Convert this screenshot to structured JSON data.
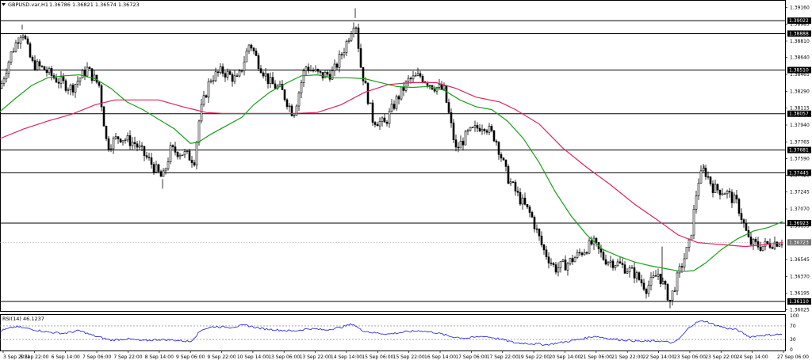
{
  "header": {
    "symbol": "GBPUSD.var,H1",
    "ohlc": "1.36786 1.36821 1.36574 1.36723",
    "menu_icon": "triangle-down-icon"
  },
  "rsi": {
    "label": "RSI(14) 46.1237",
    "levels": [
      100,
      70,
      30,
      0
    ],
    "value": 46.1237
  },
  "chart_data": {
    "type": "candlestick",
    "symbol": "GBPUSD.var",
    "timeframe": "H1",
    "current_price": 1.36723,
    "ylim": [
      1.3602,
      1.3922
    ],
    "price_ticks": [
      "1.39160",
      "1.38985",
      "1.38810",
      "1.38640",
      "1.38465",
      "1.38290",
      "1.38115",
      "1.37940",
      "1.37765",
      "1.37590",
      "1.37420",
      "1.37245",
      "1.37070",
      "1.36895",
      "1.36545",
      "1.36370",
      "1.36195",
      "1.36025"
    ],
    "horizontal_levels": [
      "1.39022",
      "1.38888",
      "1.38510",
      "1.38057",
      "1.37681",
      "1.37445",
      "1.36923",
      "1.36723",
      "1.36110"
    ],
    "time_labels": [
      "3 Sep 2021",
      "5 Sep 22:00",
      "6 Sep 14:00",
      "7 Sep 06:00",
      "7 Sep 22:00",
      "8 Sep 14:00",
      "9 Sep 06:00",
      "9 Sep 22:00",
      "10 Sep 14:00",
      "13 Sep 06:00",
      "13 Sep 22:00",
      "14 Sep 14:00",
      "15 Sep 06:00",
      "15 Sep 22:00",
      "16 Sep 14:00",
      "17 Sep 06:00",
      "17 Sep 22:00",
      "19 Sep 22:00",
      "20 Sep 14:00",
      "21 Sep 06:00",
      "21 Sep 22:00",
      "22 Sep 14:00",
      "23 Sep 06:00",
      "23 Sep 22:00",
      "24 Sep 14:00",
      "27 Sep 06:00"
    ],
    "price_path": [
      [
        0,
        1.3832
      ],
      [
        14,
        1.3868
      ],
      [
        28,
        1.3893
      ],
      [
        40,
        1.3858
      ],
      [
        55,
        1.3852
      ],
      [
        70,
        1.3842
      ],
      [
        90,
        1.3832
      ],
      [
        110,
        1.3852
      ],
      [
        125,
        1.3835
      ],
      [
        135,
        1.3772
      ],
      [
        150,
        1.3782
      ],
      [
        170,
        1.3775
      ],
      [
        190,
        1.3755
      ],
      [
        205,
        1.3738
      ],
      [
        215,
        1.3768
      ],
      [
        230,
        1.3765
      ],
      [
        245,
        1.3758
      ],
      [
        252,
        1.3805
      ],
      [
        265,
        1.3842
      ],
      [
        280,
        1.385
      ],
      [
        300,
        1.384
      ],
      [
        315,
        1.388
      ],
      [
        325,
        1.386
      ],
      [
        340,
        1.3838
      ],
      [
        355,
        1.383
      ],
      [
        370,
        1.3805
      ],
      [
        385,
        1.3855
      ],
      [
        405,
        1.3845
      ],
      [
        420,
        1.3848
      ],
      [
        435,
        1.3875
      ],
      [
        448,
        1.3905
      ],
      [
        455,
        1.3855
      ],
      [
        470,
        1.38
      ],
      [
        485,
        1.3795
      ],
      [
        500,
        1.382
      ],
      [
        515,
        1.384
      ],
      [
        530,
        1.3845
      ],
      [
        545,
        1.3835
      ],
      [
        560,
        1.383
      ],
      [
        575,
        1.3768
      ],
      [
        590,
        1.3785
      ],
      [
        610,
        1.3795
      ],
      [
        625,
        1.378
      ],
      [
        640,
        1.374
      ],
      [
        655,
        1.3718
      ],
      [
        670,
        1.37
      ],
      [
        685,
        1.3665
      ],
      [
        700,
        1.3645
      ],
      [
        715,
        1.365
      ],
      [
        730,
        1.366
      ],
      [
        748,
        1.3672
      ],
      [
        762,
        1.3655
      ],
      [
        780,
        1.365
      ],
      [
        800,
        1.364
      ],
      [
        815,
        1.3625
      ],
      [
        830,
        1.364
      ],
      [
        845,
        1.3612
      ],
      [
        858,
        1.3645
      ],
      [
        870,
        1.3672
      ],
      [
        880,
        1.3735
      ],
      [
        888,
        1.3748
      ],
      [
        900,
        1.3728
      ],
      [
        915,
        1.3725
      ],
      [
        930,
        1.3712
      ],
      [
        945,
        1.3672
      ],
      [
        960,
        1.3668
      ],
      [
        975,
        1.3672
      ],
      [
        987,
        1.3674
      ]
    ],
    "ma_green": [
      [
        0,
        1.3808
      ],
      [
        20,
        1.3822
      ],
      [
        40,
        1.3835
      ],
      [
        60,
        1.3843
      ],
      [
        80,
        1.3845
      ],
      [
        100,
        1.3846
      ],
      [
        120,
        1.3842
      ],
      [
        140,
        1.3832
      ],
      [
        160,
        1.3818
      ],
      [
        180,
        1.381
      ],
      [
        200,
        1.38
      ],
      [
        220,
        1.379
      ],
      [
        240,
        1.3775
      ],
      [
        250,
        1.3776
      ],
      [
        265,
        1.3784
      ],
      [
        285,
        1.3793
      ],
      [
        305,
        1.3802
      ],
      [
        320,
        1.3815
      ],
      [
        340,
        1.3828
      ],
      [
        360,
        1.3837
      ],
      [
        380,
        1.3845
      ],
      [
        400,
        1.3846
      ],
      [
        420,
        1.3843
      ],
      [
        440,
        1.3843
      ],
      [
        460,
        1.3842
      ],
      [
        480,
        1.3838
      ],
      [
        500,
        1.3834
      ],
      [
        520,
        1.3833
      ],
      [
        540,
        1.3834
      ],
      [
        560,
        1.383
      ],
      [
        580,
        1.382
      ],
      [
        600,
        1.3813
      ],
      [
        620,
        1.381
      ],
      [
        640,
        1.3798
      ],
      [
        660,
        1.378
      ],
      [
        680,
        1.3755
      ],
      [
        700,
        1.3725
      ],
      [
        720,
        1.37
      ],
      [
        740,
        1.368
      ],
      [
        760,
        1.3665
      ],
      [
        780,
        1.3658
      ],
      [
        800,
        1.3652
      ],
      [
        820,
        1.3648
      ],
      [
        840,
        1.3645
      ],
      [
        860,
        1.3642
      ],
      [
        875,
        1.3643
      ],
      [
        890,
        1.3651
      ],
      [
        910,
        1.3665
      ],
      [
        930,
        1.3676
      ],
      [
        950,
        1.3684
      ],
      [
        970,
        1.3688
      ],
      [
        987,
        1.3694
      ]
    ],
    "ma_red": [
      [
        0,
        1.378
      ],
      [
        30,
        1.379
      ],
      [
        60,
        1.3798
      ],
      [
        90,
        1.3805
      ],
      [
        120,
        1.3815
      ],
      [
        145,
        1.382
      ],
      [
        170,
        1.382
      ],
      [
        200,
        1.382
      ],
      [
        230,
        1.3813
      ],
      [
        245,
        1.381
      ],
      [
        260,
        1.3807
      ],
      [
        280,
        1.3806
      ],
      [
        300,
        1.3806
      ],
      [
        340,
        1.3806
      ],
      [
        370,
        1.3806
      ],
      [
        400,
        1.3807
      ],
      [
        430,
        1.3815
      ],
      [
        460,
        1.3828
      ],
      [
        490,
        1.3836
      ],
      [
        520,
        1.3838
      ],
      [
        550,
        1.3838
      ],
      [
        575,
        1.3832
      ],
      [
        600,
        1.3823
      ],
      [
        630,
        1.3818
      ],
      [
        650,
        1.381
      ],
      [
        680,
        1.3795
      ],
      [
        710,
        1.377
      ],
      [
        740,
        1.375
      ],
      [
        770,
        1.3732
      ],
      [
        800,
        1.3712
      ],
      [
        830,
        1.3695
      ],
      [
        855,
        1.368
      ],
      [
        880,
        1.3672
      ],
      [
        910,
        1.367
      ],
      [
        940,
        1.3668
      ],
      [
        965,
        1.367
      ],
      [
        987,
        1.3672
      ]
    ],
    "rsi_path": [
      [
        0,
        55
      ],
      [
        20,
        68
      ],
      [
        40,
        60
      ],
      [
        60,
        52
      ],
      [
        80,
        48
      ],
      [
        100,
        56
      ],
      [
        120,
        40
      ],
      [
        140,
        28
      ],
      [
        160,
        32
      ],
      [
        180,
        26
      ],
      [
        200,
        30
      ],
      [
        220,
        28
      ],
      [
        240,
        24
      ],
      [
        255,
        60
      ],
      [
        270,
        68
      ],
      [
        290,
        66
      ],
      [
        310,
        72
      ],
      [
        330,
        62
      ],
      [
        350,
        58
      ],
      [
        370,
        55
      ],
      [
        390,
        62
      ],
      [
        410,
        58
      ],
      [
        430,
        66
      ],
      [
        445,
        76
      ],
      [
        455,
        58
      ],
      [
        470,
        50
      ],
      [
        490,
        46
      ],
      [
        510,
        52
      ],
      [
        530,
        56
      ],
      [
        550,
        50
      ],
      [
        570,
        38
      ],
      [
        590,
        34
      ],
      [
        610,
        40
      ],
      [
        630,
        32
      ],
      [
        650,
        20
      ],
      [
        670,
        18
      ],
      [
        690,
        15
      ],
      [
        710,
        22
      ],
      [
        730,
        30
      ],
      [
        750,
        40
      ],
      [
        770,
        32
      ],
      [
        790,
        28
      ],
      [
        810,
        24
      ],
      [
        830,
        26
      ],
      [
        850,
        20
      ],
      [
        860,
        40
      ],
      [
        870,
        68
      ],
      [
        880,
        82
      ],
      [
        890,
        84
      ],
      [
        900,
        74
      ],
      [
        915,
        64
      ],
      [
        930,
        58
      ],
      [
        945,
        38
      ],
      [
        960,
        42
      ],
      [
        975,
        44
      ],
      [
        987,
        46
      ]
    ]
  }
}
